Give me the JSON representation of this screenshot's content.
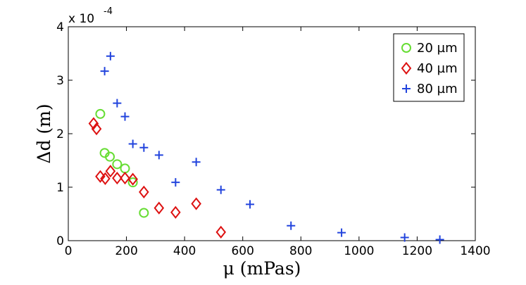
{
  "chart_data": {
    "type": "scatter",
    "title": "",
    "xlabel": "μ (mPas)",
    "ylabel": "Δd (m)",
    "xlim": [
      0,
      1400
    ],
    "ylim": [
      0,
      4
    ],
    "y_multiplier_label": "x 10",
    "y_multiplier_exponent": "-4",
    "x_ticks": [
      0,
      200,
      400,
      600,
      800,
      1000,
      1200,
      1400
    ],
    "y_ticks": [
      0,
      1,
      2,
      3,
      4
    ],
    "legend_position": "top-right",
    "series": [
      {
        "name": "20  µm",
        "marker": "circle",
        "color": "#66dd33",
        "points": [
          [
            110,
            2.37
          ],
          [
            125,
            1.64
          ],
          [
            143,
            1.57
          ],
          [
            168,
            1.43
          ],
          [
            195,
            1.35
          ],
          [
            222,
            1.09
          ],
          [
            260,
            0.52
          ]
        ]
      },
      {
        "name": "40  µm",
        "marker": "diamond",
        "color": "#dd1111",
        "points": [
          [
            87,
            2.19
          ],
          [
            97,
            2.09
          ],
          [
            110,
            1.2
          ],
          [
            127,
            1.16
          ],
          [
            145,
            1.3
          ],
          [
            168,
            1.17
          ],
          [
            195,
            1.17
          ],
          [
            222,
            1.15
          ],
          [
            260,
            0.91
          ],
          [
            312,
            0.61
          ],
          [
            369,
            0.53
          ],
          [
            440,
            0.69
          ],
          [
            525,
            0.16
          ]
        ]
      },
      {
        "name": "80  µm",
        "marker": "plus",
        "color": "#2244dd",
        "points": [
          [
            125,
            3.17
          ],
          [
            145,
            3.45
          ],
          [
            168,
            2.57
          ],
          [
            195,
            2.32
          ],
          [
            222,
            1.81
          ],
          [
            260,
            1.74
          ],
          [
            312,
            1.6
          ],
          [
            369,
            1.09
          ],
          [
            440,
            1.47
          ],
          [
            525,
            0.95
          ],
          [
            625,
            0.68
          ],
          [
            766,
            0.28
          ],
          [
            940,
            0.15
          ],
          [
            1157,
            0.06
          ],
          [
            1278,
            0.02
          ]
        ]
      }
    ]
  }
}
